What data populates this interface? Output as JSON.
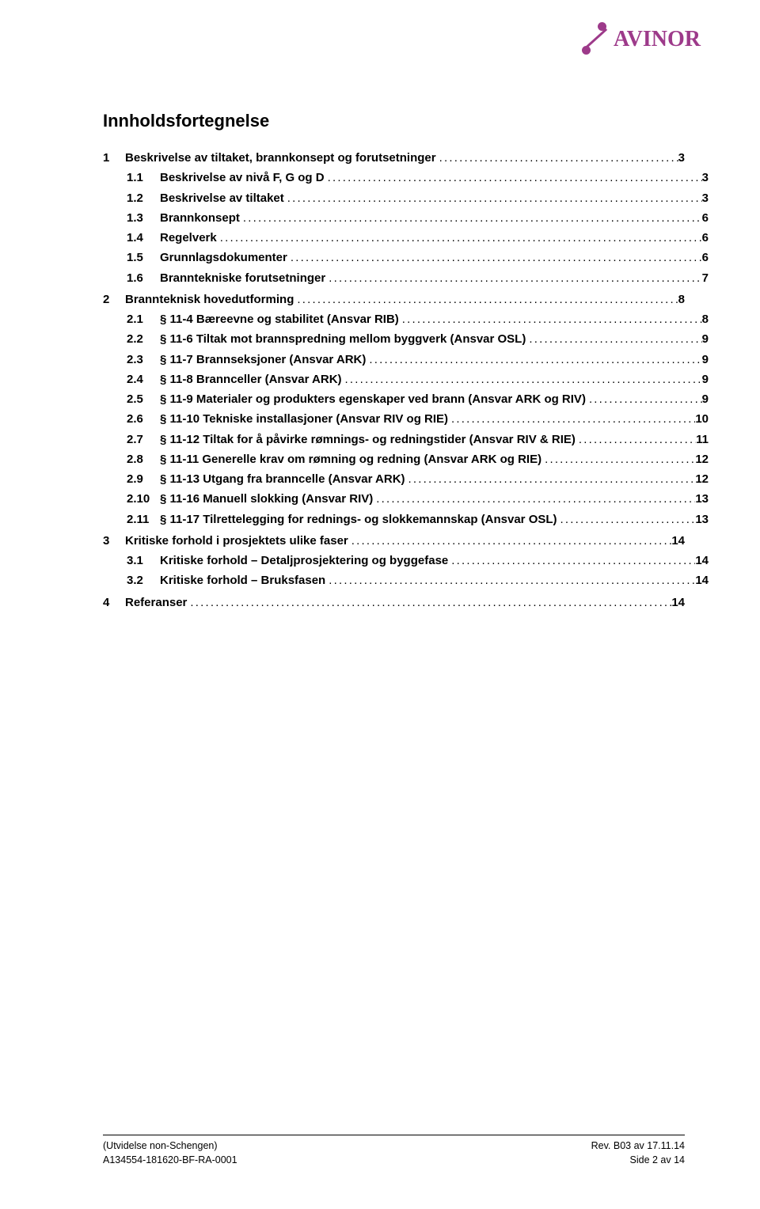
{
  "logo_text": "AVINOR",
  "title": "Innholdsfortegnelse",
  "toc": [
    {
      "level": 1,
      "num": "1",
      "label": "Beskrivelse av tiltaket, brannkonsept og forutsetninger",
      "page": "3"
    },
    {
      "level": 2,
      "num": "1.1",
      "label": "Beskrivelse av nivå F, G og D",
      "page": "3"
    },
    {
      "level": 2,
      "num": "1.2",
      "label": "Beskrivelse av tiltaket",
      "page": "3"
    },
    {
      "level": 2,
      "num": "1.3",
      "label": "Brannkonsept",
      "page": "6"
    },
    {
      "level": 2,
      "num": "1.4",
      "label": "Regelverk",
      "page": "6"
    },
    {
      "level": 2,
      "num": "1.5",
      "label": "Grunnlagsdokumenter",
      "page": "6"
    },
    {
      "level": 2,
      "num": "1.6",
      "label": "Branntekniske forutsetninger",
      "page": "7"
    },
    {
      "level": 1,
      "num": "2",
      "label": "Brannteknisk hovedutforming",
      "page": "8"
    },
    {
      "level": 2,
      "num": "2.1",
      "label": "§ 11-4 Bæreevne og stabilitet (Ansvar RIB)",
      "page": "8"
    },
    {
      "level": 2,
      "num": "2.2",
      "label": "§ 11-6 Tiltak mot brannspredning mellom byggverk (Ansvar OSL)",
      "page": "9"
    },
    {
      "level": 2,
      "num": "2.3",
      "label": "§ 11-7 Brannseksjoner (Ansvar ARK)",
      "page": "9"
    },
    {
      "level": 2,
      "num": "2.4",
      "label": "§ 11-8 Brannceller (Ansvar ARK)",
      "page": "9"
    },
    {
      "level": 2,
      "num": "2.5",
      "label": "§ 11-9 Materialer og produkters egenskaper ved brann (Ansvar ARK og RIV)",
      "page": "9",
      "long": true
    },
    {
      "level": 2,
      "num": "2.6",
      "label": "§ 11-10 Tekniske installasjoner (Ansvar RIV og RIE)",
      "page": "10"
    },
    {
      "level": 2,
      "num": "2.7",
      "label": "§ 11-12 Tiltak for å påvirke rømnings- og redningstider (Ansvar RIV & RIE)",
      "page": "11",
      "long": true
    },
    {
      "level": 2,
      "num": "2.8",
      "label": "§ 11-11 Generelle krav om rømning og redning (Ansvar ARK og RIE)",
      "page": "12"
    },
    {
      "level": 2,
      "num": "2.9",
      "label": "§ 11-13 Utgang fra branncelle (Ansvar ARK)",
      "page": "12"
    },
    {
      "level": 2,
      "num": "2.10",
      "label": "§ 11-16 Manuell slokking (Ansvar RIV)",
      "page": "13"
    },
    {
      "level": 2,
      "num": "2.11",
      "label": "§ 11-17 Tilrettelegging for rednings- og slokkemannskap (Ansvar OSL)",
      "page": "13",
      "long": true
    },
    {
      "level": 1,
      "num": "3",
      "label": "Kritiske forhold i prosjektets ulike faser",
      "page": "14"
    },
    {
      "level": 2,
      "num": "3.1",
      "label": "Kritiske forhold – Detaljprosjektering og byggefase",
      "page": "14"
    },
    {
      "level": 2,
      "num": "3.2",
      "label": "Kritiske forhold – Bruksfasen",
      "page": "14"
    },
    {
      "level": 1,
      "num": "4",
      "label": "Referanser",
      "page": "14"
    }
  ],
  "footer": {
    "top_left": "(Utvidelse non-Schengen)",
    "top_right": "Rev. B03 av 17.11.14",
    "bottom_left": "A134554-181620-BF-RA-0001",
    "bottom_right": "Side 2 av 14"
  },
  "colors": {
    "brand": "#9d3a8a",
    "text": "#000000",
    "background": "#ffffff"
  },
  "typography": {
    "title_fontsize": 22,
    "toc_fontsize": 15,
    "footer_fontsize": 12.5,
    "font_family": "Arial"
  }
}
